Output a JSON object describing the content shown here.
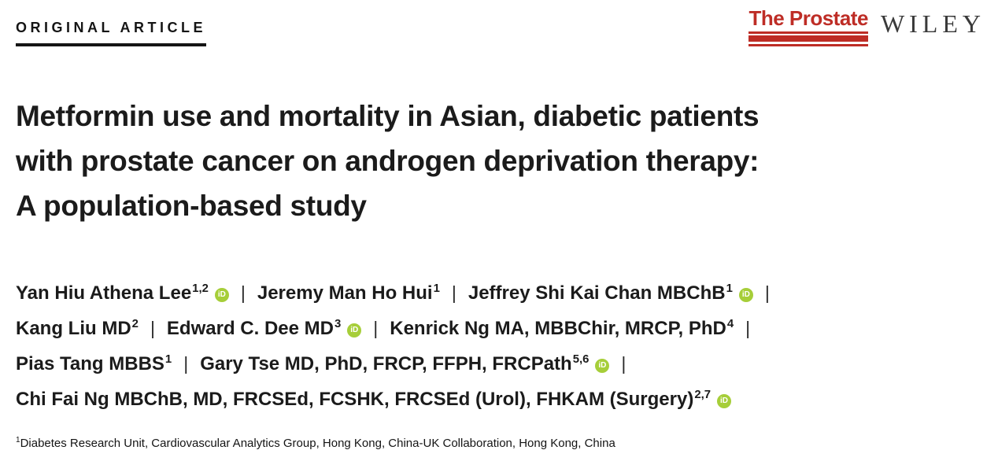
{
  "header": {
    "article_type": "ORIGINAL ARTICLE",
    "journal_name": "The Prostate",
    "publisher": "WILEY"
  },
  "title_full": "Metformin use and mortality in Asian, diabetic patients with prostate cancer on androgen deprivation therapy: A population-based study",
  "title_lines": [
    "Metformin use and mortality in Asian, diabetic patients",
    "with prostate cancer on androgen deprivation therapy:",
    "A population-based study"
  ],
  "authors_separator": "|",
  "authors": [
    {
      "name": "Yan Hiu Athena Lee",
      "sup": "1,2",
      "orcid": true,
      "line": 0
    },
    {
      "name": "Jeremy Man Ho Hui",
      "sup": "1",
      "orcid": false,
      "line": 0
    },
    {
      "name": "Jeffrey Shi Kai Chan MBChB",
      "sup": "1",
      "orcid": true,
      "line": 0
    },
    {
      "name": "Kang Liu MD",
      "sup": "2",
      "orcid": false,
      "line": 1
    },
    {
      "name": "Edward C. Dee MD",
      "sup": "3",
      "orcid": true,
      "line": 1
    },
    {
      "name": "Kenrick Ng MA, MBBChir, MRCP, PhD",
      "sup": "4",
      "orcid": false,
      "line": 1
    },
    {
      "name": "Pias Tang MBBS",
      "sup": "1",
      "orcid": false,
      "line": 2
    },
    {
      "name": "Gary Tse MD, PhD, FRCP, FFPH, FRCPath",
      "sup": "5,6",
      "orcid": true,
      "line": 2
    },
    {
      "name": "Chi Fai Ng MBChB, MD, FRCSEd, FCSHK, FRCSEd (Urol), FHKAM (Surgery)",
      "sup": "2,7",
      "orcid": true,
      "line": 3
    }
  ],
  "affiliations": [
    {
      "sup": "1",
      "text": "Diabetes Research Unit, Cardiovascular Analytics Group, Hong Kong, China-UK Collaboration, Hong Kong, China"
    }
  ],
  "icons": {
    "orcid_label": "iD"
  },
  "colors": {
    "prostate_red": "#BE2D26",
    "orcid_green": "#A6CE39",
    "wiley_gray": "#3A3A3A",
    "text_black": "#1B1B1B"
  }
}
